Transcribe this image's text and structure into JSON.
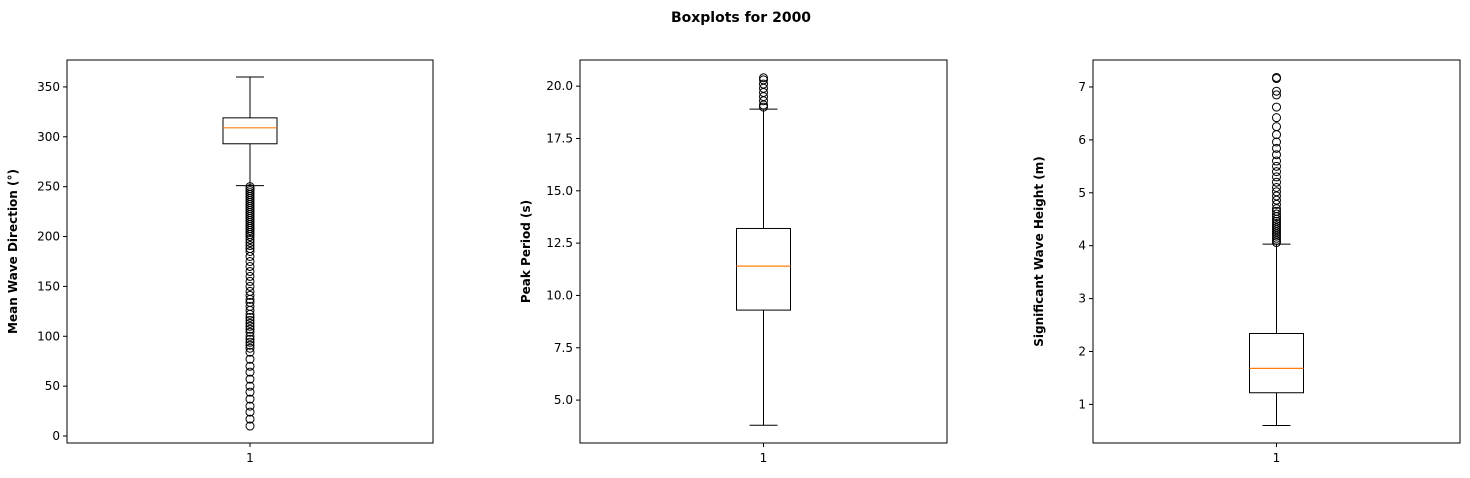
{
  "figure": {
    "title": "Boxplots for 2000"
  },
  "chart_data": [
    {
      "type": "box",
      "ylabel": "Mean Wave Direction (°)",
      "categories": [
        "1"
      ],
      "ylim": [
        -7,
        377
      ],
      "yticks": [
        0,
        50,
        100,
        150,
        200,
        250,
        300,
        350
      ],
      "ytick_labels": [
        "0",
        "50",
        "100",
        "150",
        "200",
        "250",
        "300",
        "350"
      ],
      "box": {
        "whisker_low": 251,
        "q1": 293,
        "median": 309,
        "q3": 319,
        "whisker_high": 360
      },
      "fliers": [
        10,
        17,
        24,
        30,
        37,
        44,
        50,
        57,
        64,
        70,
        77,
        84,
        88,
        91,
        94,
        97,
        100,
        104,
        107,
        110,
        113,
        116,
        119,
        122,
        126,
        130,
        134,
        137,
        141,
        145,
        150,
        155,
        160,
        165,
        170,
        175,
        180,
        185,
        188,
        191,
        194,
        197,
        200,
        202,
        204,
        206,
        208,
        210,
        212,
        214,
        216,
        218,
        220,
        222,
        224,
        226,
        228,
        230,
        232,
        234,
        236,
        238,
        240,
        242,
        244,
        246,
        248,
        250
      ]
    },
    {
      "type": "box",
      "ylabel": "Peak Period (s)",
      "categories": [
        "1"
      ],
      "ylim": [
        2.95,
        21.25
      ],
      "yticks": [
        5.0,
        7.5,
        10.0,
        12.5,
        15.0,
        17.5,
        20.0
      ],
      "ytick_labels": [
        "5.0",
        "7.5",
        "10.0",
        "12.5",
        "15.0",
        "17.5",
        "20.0"
      ],
      "box": {
        "whisker_low": 3.8,
        "q1": 9.3,
        "median": 11.4,
        "q3": 13.2,
        "whisker_high": 18.9
      },
      "fliers": [
        19.0,
        19.1,
        19.3,
        19.5,
        19.7,
        19.9,
        20.1,
        20.3,
        20.4
      ]
    },
    {
      "type": "box",
      "ylabel": "Significant Wave Height (m)",
      "categories": [
        "1"
      ],
      "ylim": [
        0.27,
        7.51
      ],
      "yticks": [
        1,
        2,
        3,
        4,
        5,
        6,
        7
      ],
      "ytick_labels": [
        "1",
        "2",
        "3",
        "4",
        "5",
        "6",
        "7"
      ],
      "box": {
        "whisker_low": 0.6,
        "q1": 1.22,
        "median": 1.68,
        "q3": 2.34,
        "whisker_high": 4.03
      },
      "fliers": [
        4.06,
        4.1,
        4.14,
        4.18,
        4.22,
        4.26,
        4.3,
        4.34,
        4.38,
        4.42,
        4.46,
        4.5,
        4.55,
        4.6,
        4.65,
        4.7,
        4.78,
        4.86,
        4.94,
        5.02,
        5.1,
        5.2,
        5.3,
        5.4,
        5.5,
        5.6,
        5.72,
        5.84,
        5.96,
        6.1,
        6.25,
        6.42,
        6.62,
        6.85,
        6.92,
        7.16,
        7.18
      ]
    }
  ],
  "colors": {
    "median": "#ff7f0e",
    "box": "#000000",
    "flier": "#000000"
  }
}
